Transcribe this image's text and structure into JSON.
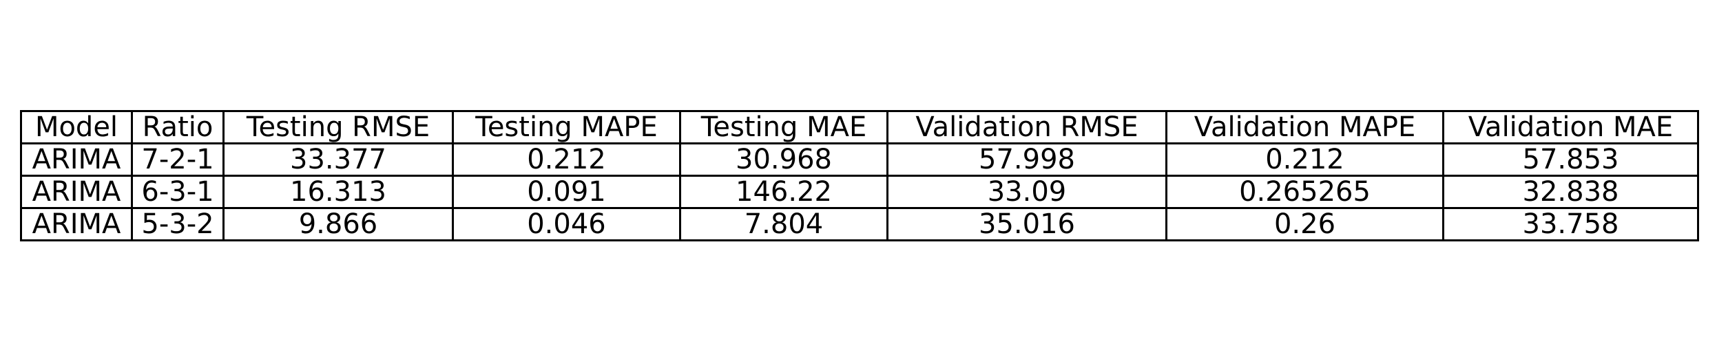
{
  "chart_data": {
    "type": "table",
    "columns": [
      "Model",
      "Ratio",
      "Testing RMSE",
      "Testing MAPE",
      "Testing MAE",
      "Validation RMSE",
      "Validation MAPE",
      "Validation MAE"
    ],
    "rows": [
      [
        "ARIMA",
        "7-2-1",
        "33.377",
        "0.212",
        "30.968",
        "57.998",
        "0.212",
        "57.853"
      ],
      [
        "ARIMA",
        "6-3-1",
        "16.313",
        "0.091",
        "146.22",
        "33.09",
        "0.265265",
        "32.838"
      ],
      [
        "ARIMA",
        "5-3-2",
        "9.866",
        "0.046",
        "7.804",
        "35.016",
        "0.26",
        "33.758"
      ]
    ]
  }
}
